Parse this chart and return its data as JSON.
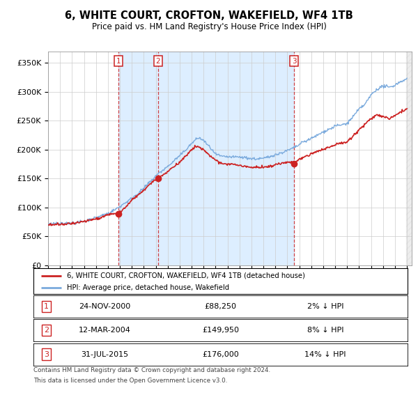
{
  "title": "6, WHITE COURT, CROFTON, WAKEFIELD, WF4 1TB",
  "subtitle": "Price paid vs. HM Land Registry's House Price Index (HPI)",
  "ylim": [
    0,
    370000
  ],
  "yticks": [
    0,
    50000,
    100000,
    150000,
    200000,
    250000,
    300000,
    350000
  ],
  "ytick_labels": [
    "£0",
    "£50K",
    "£100K",
    "£150K",
    "£200K",
    "£250K",
    "£300K",
    "£350K"
  ],
  "xlim_start": 1995.0,
  "xlim_end": 2025.4,
  "sale_years": [
    2000.9,
    2004.2,
    2015.58
  ],
  "sale_prices": [
    88250,
    149950,
    176000
  ],
  "sale_labels": [
    "1",
    "2",
    "3"
  ],
  "sale_date_str": [
    "24-NOV-2000",
    "12-MAR-2004",
    "31-JUL-2015"
  ],
  "sale_pct": [
    "2% ↓ HPI",
    "8% ↓ HPI",
    "14% ↓ HPI"
  ],
  "legend_label_red": "6, WHITE COURT, CROFTON, WAKEFIELD, WF4 1TB (detached house)",
  "legend_label_blue": "HPI: Average price, detached house, Wakefield",
  "footer_line1": "Contains HM Land Registry data © Crown copyright and database right 2024.",
  "footer_line2": "This data is licensed under the Open Government Licence v3.0.",
  "red_color": "#cc2222",
  "blue_color": "#7aaadd",
  "blue_fill_color": "#ddeeff",
  "hatch_color": "#ccddee",
  "vline_color": "#cc2222",
  "grid_color": "#cccccc",
  "bg_color": "#ffffff"
}
